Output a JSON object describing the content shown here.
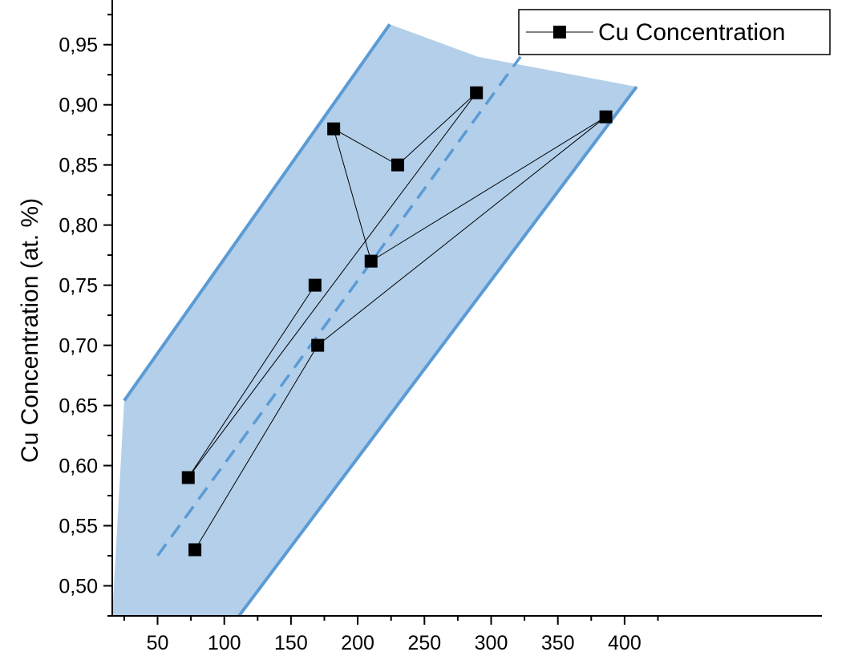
{
  "chart_data": {
    "type": "scatter",
    "title": "",
    "xlabel": "",
    "ylabel": "Cu Concentration (at. %)",
    "xlim": [
      25,
      425
    ],
    "ylim": [
      0.475,
      0.975
    ],
    "xticks": [
      50,
      100,
      150,
      200,
      250,
      300,
      350,
      400
    ],
    "yticks": [
      0.5,
      0.55,
      0.6,
      0.65,
      0.7,
      0.75,
      0.8,
      0.85,
      0.9,
      0.95
    ],
    "xtick_labels": [
      "50",
      "100",
      "150",
      "200",
      "250",
      "300",
      "350",
      "400"
    ],
    "ytick_labels": [
      "0,50",
      "0,55",
      "0,60",
      "0,65",
      "0,70",
      "0,75",
      "0,80",
      "0,85",
      "0,90",
      "0,95"
    ],
    "legend_position": "top-right",
    "grid": false,
    "colors": {
      "band_fill": "#b3cfea",
      "band_edge": "#5b9bd5",
      "trend_line": "#5b9bd5",
      "series": "#000000"
    },
    "series": [
      {
        "name": "Cu Concentration",
        "marker": "square",
        "points": [
          {
            "x": 168,
            "y": 0.75
          },
          {
            "x": 73,
            "y": 0.59
          },
          {
            "x": 289,
            "y": 0.91
          },
          {
            "x": 230,
            "y": 0.85
          },
          {
            "x": 182,
            "y": 0.88
          },
          {
            "x": 210,
            "y": 0.77
          },
          {
            "x": 386,
            "y": 0.89
          },
          {
            "x": 170,
            "y": 0.7
          },
          {
            "x": 78,
            "y": 0.53
          }
        ]
      }
    ],
    "trend_line": {
      "x": [
        50,
        322
      ],
      "y": [
        0.525,
        0.94
      ]
    },
    "band": {
      "upper": {
        "x": [
          25,
          224,
          290,
          409
        ],
        "y": [
          0.654,
          0.967,
          0.94,
          0.915
        ]
      },
      "lower": {
        "x": [
          111,
          409
        ],
        "y": [
          0.475,
          0.915
        ]
      }
    }
  }
}
